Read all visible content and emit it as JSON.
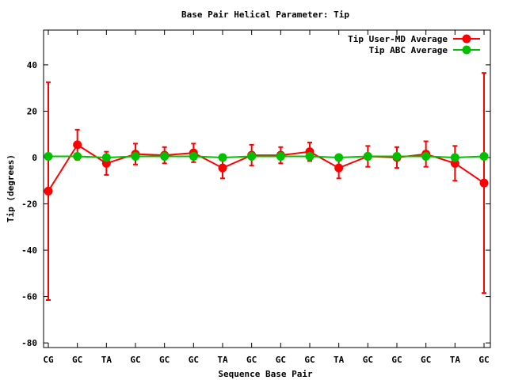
{
  "chart_data": {
    "type": "line",
    "title": "Base Pair Helical Parameter: Tip",
    "xlabel": "Sequence Base Pair",
    "ylabel": "Tip (degrees)",
    "ylim": [
      -82,
      55
    ],
    "yticks": [
      -80,
      -60,
      -40,
      -20,
      0,
      20,
      40
    ],
    "categories": [
      "CG",
      "GC",
      "TA",
      "GC",
      "GC",
      "GC",
      "TA",
      "GC",
      "GC",
      "GC",
      "TA",
      "GC",
      "GC",
      "GC",
      "TA",
      "GC"
    ],
    "legend_position": "top-right",
    "series": [
      {
        "name": "Tip User-MD Average",
        "color": "#ff0000",
        "values": [
          -14.5,
          5.5,
          -2.5,
          1.5,
          1.0,
          2.0,
          -4.5,
          1.0,
          1.0,
          2.5,
          -4.5,
          0.5,
          0.0,
          1.5,
          -2.5,
          -11.0
        ],
        "error": [
          47.0,
          6.5,
          5.0,
          4.5,
          3.5,
          4.0,
          4.5,
          4.5,
          3.5,
          4.0,
          4.5,
          4.5,
          4.5,
          5.5,
          7.5,
          47.5
        ]
      },
      {
        "name": "Tip ABC Average",
        "color": "#00c000",
        "values": [
          0.5,
          0.5,
          0.0,
          0.5,
          0.5,
          0.5,
          0.0,
          0.5,
          0.5,
          0.5,
          0.0,
          0.5,
          0.5,
          0.5,
          0.0,
          0.5
        ]
      }
    ]
  }
}
